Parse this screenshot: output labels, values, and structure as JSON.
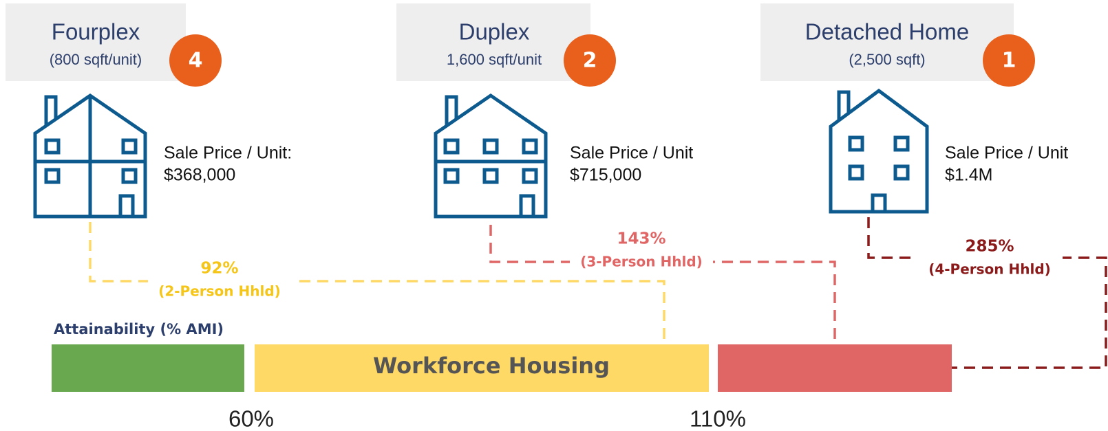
{
  "homes": [
    {
      "title": "Fourplex",
      "subtitle": "(800 sqft/unit)",
      "badge": "4",
      "price_label": "Sale Price / Unit:",
      "price": "$368,000"
    },
    {
      "title": "Duplex",
      "subtitle": "1,600 sqft/unit",
      "badge": "2",
      "price_label": "Sale Price / Unit",
      "price": "$715,000"
    },
    {
      "title": "Detached Home",
      "subtitle": "(2,500 sqft)",
      "badge": "1",
      "price_label": "Sale Price / Unit",
      "price": "$1.4M"
    }
  ],
  "connectors": [
    {
      "percent": "92%",
      "household": "(2-Person Hhld)"
    },
    {
      "percent": "143%",
      "household": "(3-Person Hhld)"
    },
    {
      "percent": "285%",
      "household": "(4-Person Hhld)"
    }
  ],
  "scale": {
    "title": "Attainability (% AMI)",
    "band_label": "Workforce Housing",
    "ticks": [
      "60%",
      "110%"
    ]
  }
}
